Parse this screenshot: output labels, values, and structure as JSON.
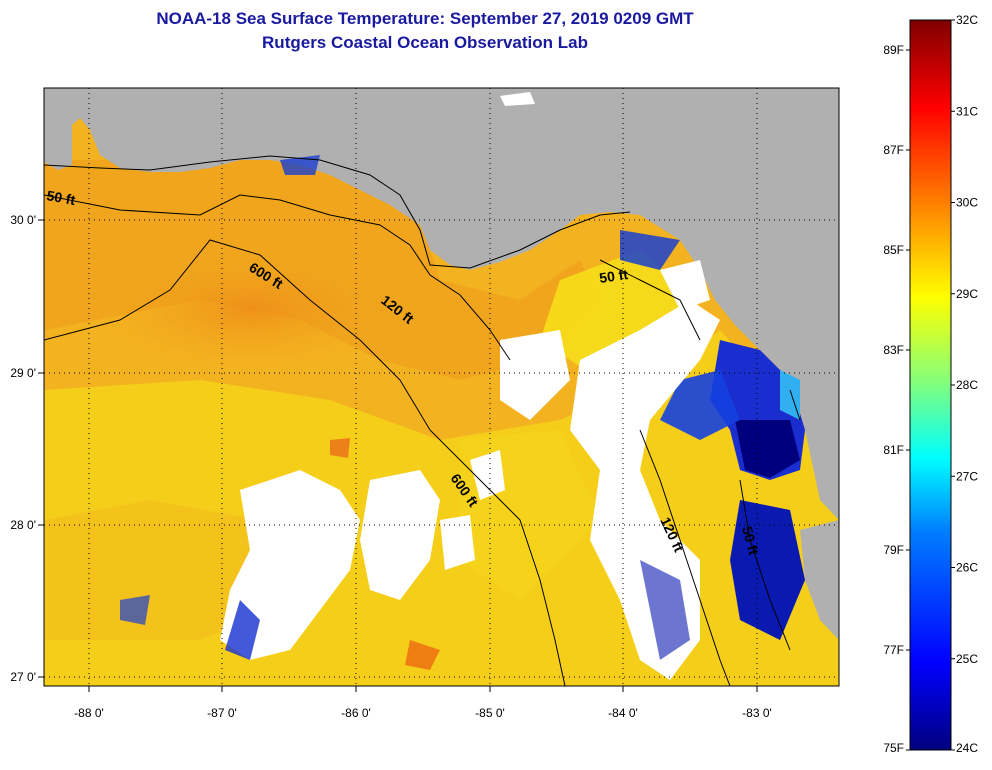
{
  "header": {
    "title": "NOAA-18 Sea Surface Temperature:  September 27, 2019 0209 GMT",
    "subtitle": "Rutgers Coastal Ocean Observation Lab"
  },
  "map": {
    "x_ticks": [
      "-88 0'",
      "-87 0'",
      "-86 0'",
      "-85 0'",
      "-84 0'",
      "-83 0'"
    ],
    "y_ticks": [
      "30 0'",
      "29 0'",
      "28 0'",
      "27 0'"
    ],
    "contours": [
      {
        "label": "50 ft"
      },
      {
        "label": "600 ft"
      },
      {
        "label": "120 ft"
      },
      {
        "label": "50 ft"
      },
      {
        "label": "600 ft"
      },
      {
        "label": "120 ft"
      },
      {
        "label": "50 ft"
      }
    ],
    "colors": {
      "land": "#b0b0b0",
      "cloud": "#ffffff",
      "water_warm": "#f2a81e",
      "water_mid": "#f5d81a"
    }
  },
  "colorbar": {
    "celsius": [
      "32C",
      "31C",
      "30C",
      "29C",
      "28C",
      "27C",
      "26C",
      "25C",
      "24C"
    ],
    "fahrenheit": [
      "89F",
      "87F",
      "85F",
      "83F",
      "81F",
      "79F",
      "77F",
      "75F"
    ],
    "range_c": [
      24,
      32
    ],
    "range_f": [
      75,
      89.6
    ]
  }
}
